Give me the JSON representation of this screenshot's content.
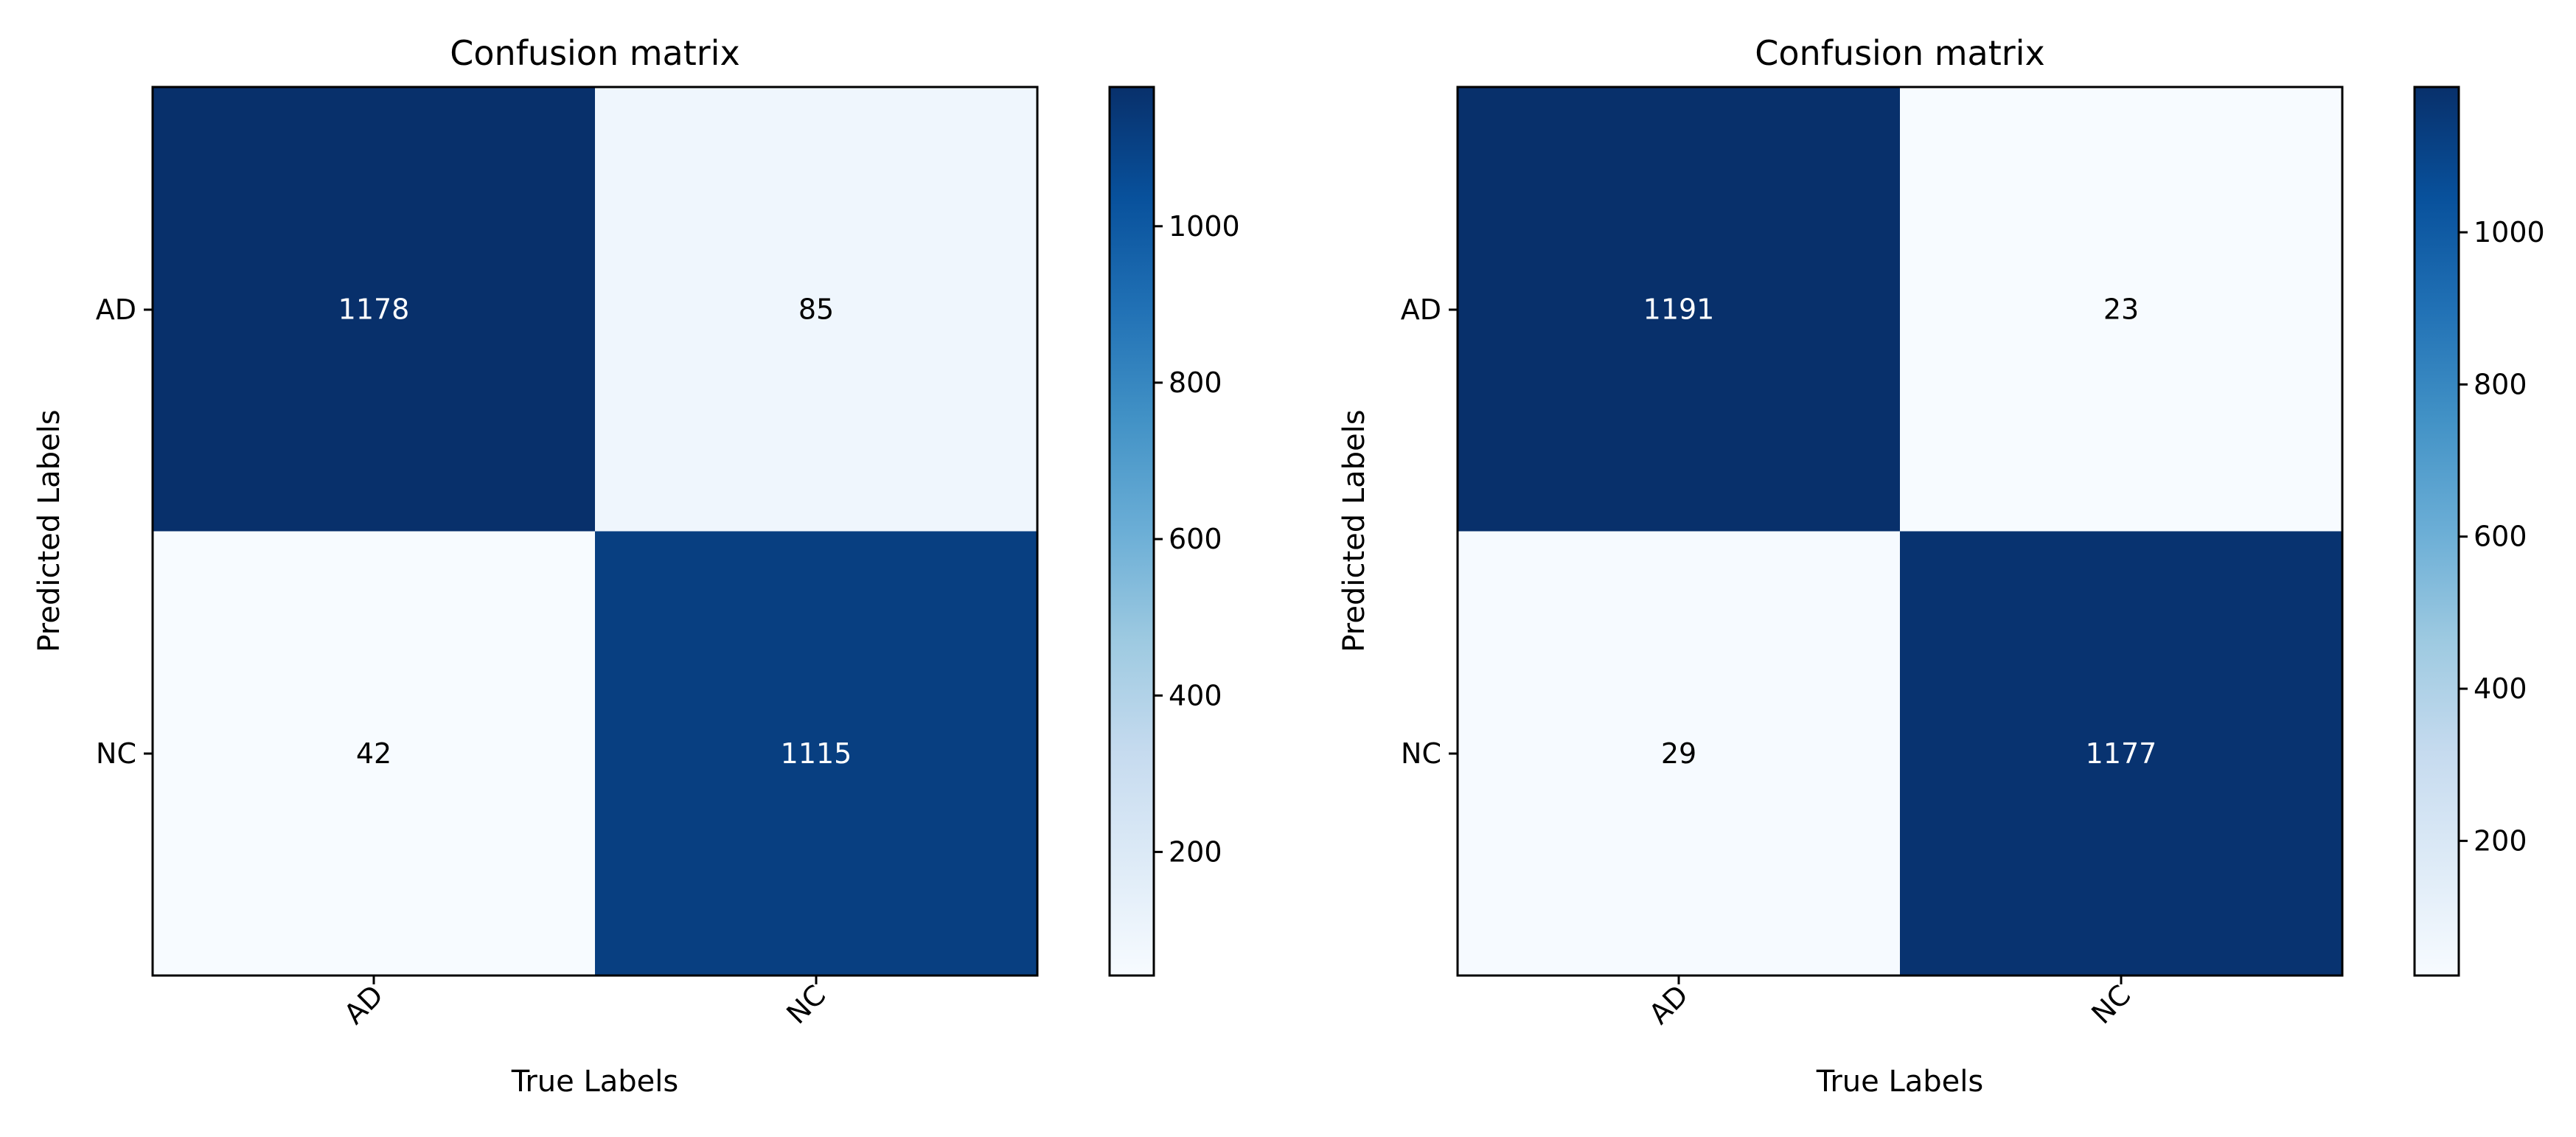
{
  "chart_data": [
    {
      "type": "heatmap",
      "title": "Confusion matrix",
      "xlabel": "True Labels",
      "ylabel": "Predicted Labels",
      "x_categories": [
        "AD",
        "NC"
      ],
      "y_categories": [
        "AD",
        "NC"
      ],
      "values": [
        [
          1178,
          85
        ],
        [
          42,
          1115
        ]
      ],
      "colormap": "Blues",
      "colorbar": {
        "min": 42,
        "max": 1178,
        "ticks": [
          200,
          400,
          600,
          800,
          1000
        ]
      }
    },
    {
      "type": "heatmap",
      "title": "Confusion matrix",
      "xlabel": "True Labels",
      "ylabel": "Predicted Labels",
      "x_categories": [
        "AD",
        "NC"
      ],
      "y_categories": [
        "AD",
        "NC"
      ],
      "values": [
        [
          1191,
          23
        ],
        [
          29,
          1177
        ]
      ],
      "colormap": "Blues",
      "colorbar": {
        "min": 23,
        "max": 1191,
        "ticks": [
          200,
          400,
          600,
          800,
          1000
        ]
      }
    }
  ]
}
